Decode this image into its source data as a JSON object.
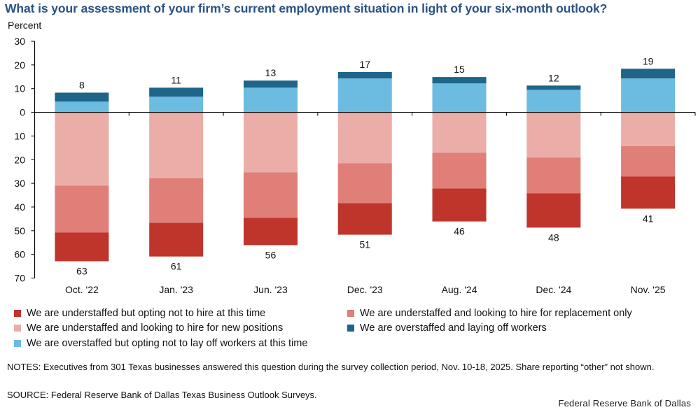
{
  "title": "What is your assessment of your firm’s current employment situation in light of your six-month outlook?",
  "chart_data": {
    "type": "bar",
    "stacked": true,
    "title": "What is your assessment of your firm’s current employment situation in light of your six-month outlook?",
    "ylabel": "Percent",
    "xlabel": "",
    "ylim": [
      -70,
      30
    ],
    "y_ticks": [
      30,
      20,
      10,
      0,
      10,
      20,
      30,
      40,
      50,
      60,
      70
    ],
    "y_tick_values": [
      30,
      20,
      10,
      0,
      -10,
      -20,
      -30,
      -40,
      -50,
      -60,
      -70
    ],
    "grid": false,
    "legend_position": "bottom",
    "categories": [
      "Oct. '22",
      "Jan. '23",
      "Jun. '23",
      "Dec. '23",
      "Aug. '24",
      "Dec. '24",
      "Nov. '25"
    ],
    "series": [
      {
        "name": "We are understaffed and looking to hire for new positions",
        "direction": "down",
        "color": "#EBADA8",
        "values": [
          31.0,
          27.9,
          25.4,
          21.5,
          17.1,
          19.1,
          14.3
        ]
      },
      {
        "name": "We are understaffed and looking to hire for replacement only",
        "direction": "down",
        "color": "#E07E78",
        "values": [
          19.8,
          18.8,
          19.2,
          16.9,
          15.1,
          15.1,
          12.8
        ]
      },
      {
        "name": "We are understaffed but opting not to hire at this time",
        "direction": "down",
        "color": "#C0352B",
        "values": [
          12.1,
          14.2,
          11.5,
          13.3,
          13.9,
          14.5,
          13.6
        ]
      },
      {
        "name": "We are overstaffed but opting not to lay off workers at this time",
        "direction": "up",
        "color": "#6BBCE0",
        "values": [
          4.5,
          6.6,
          10.4,
          14.3,
          12.2,
          9.5,
          14.3
        ]
      },
      {
        "name": "We are overstaffed and laying off workers",
        "direction": "up",
        "color": "#1F6489",
        "values": [
          3.8,
          3.8,
          3.0,
          2.7,
          2.7,
          1.8,
          4.1
        ]
      }
    ],
    "top_labels": [
      "8",
      "11",
      "13",
      "17",
      "15",
      "12",
      "19"
    ],
    "bottom_labels": [
      "63",
      "61",
      "56",
      "51",
      "46",
      "48",
      "41"
    ]
  },
  "legend": [
    {
      "label": "We are understaffed but opting not to hire at this time",
      "color": "#C0352B"
    },
    {
      "label": "We are understaffed and looking to hire for replacement only",
      "color": "#E07E78"
    },
    {
      "label": "We are understaffed and looking to hire for new positions",
      "color": "#EBADA8"
    },
    {
      "label": "We are overstaffed and laying off workers",
      "color": "#1F6489"
    },
    {
      "label": "We are overstaffed but opting not to lay off workers at this time",
      "color": "#6BBCE0"
    }
  ],
  "notes": "NOTES: Executives from 301 Texas businesses answered this question during the survey collection period, Nov. 10-18, 2025. Share reporting “other” not shown.",
  "source": "SOURCE: Federal Reserve Bank of Dallas Texas Business Outlook Surveys.",
  "brand": "Federal Reserve Bank of Dallas"
}
